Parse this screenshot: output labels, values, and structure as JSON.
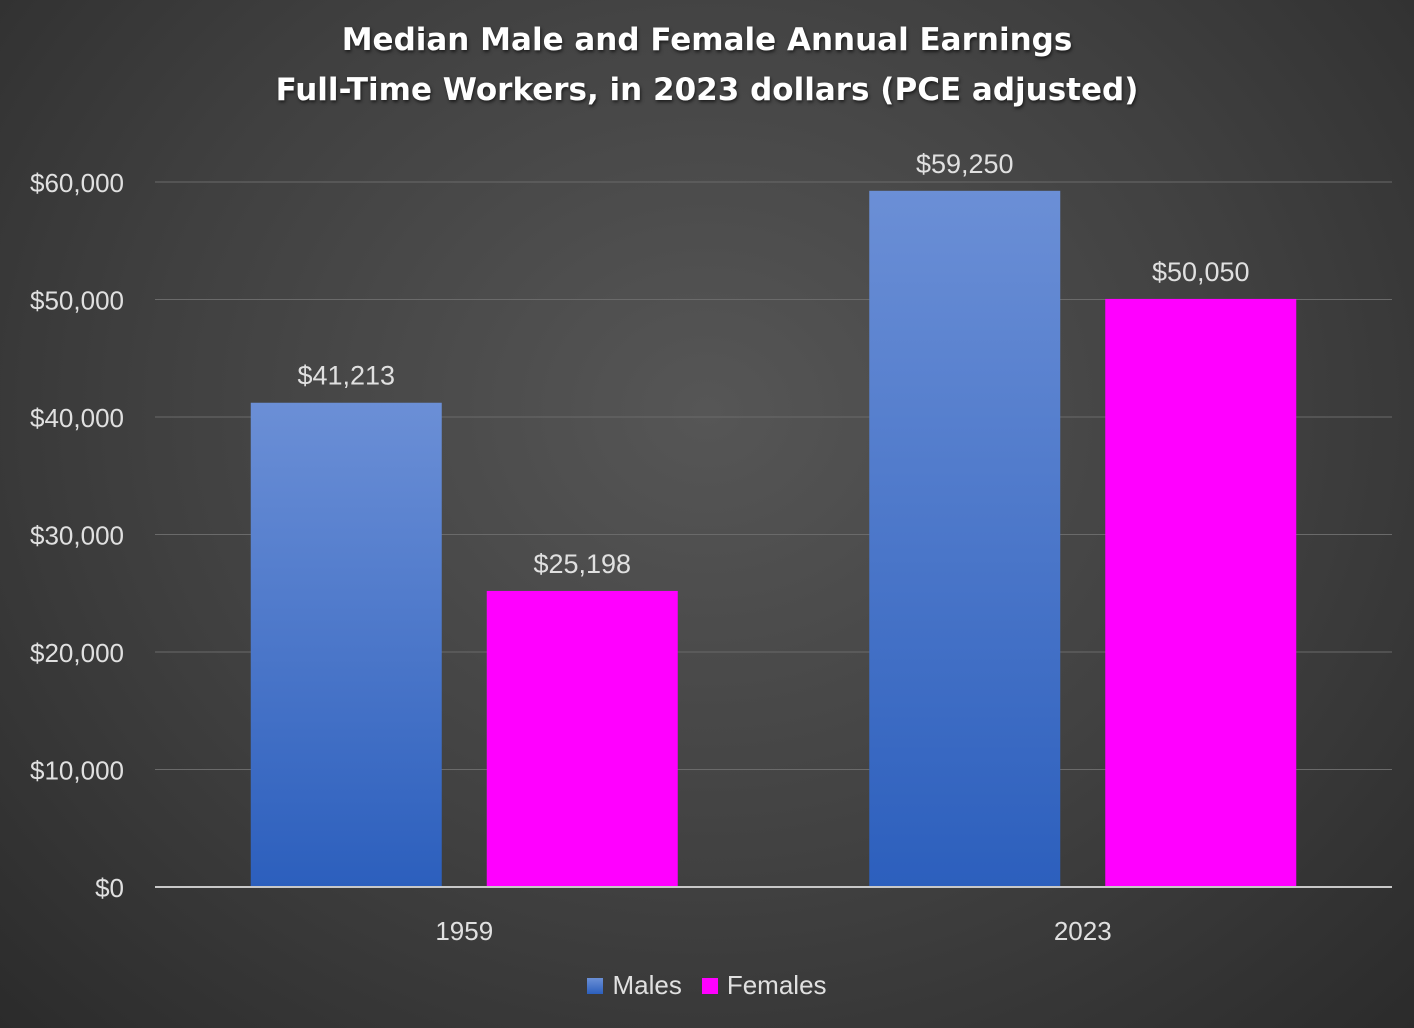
{
  "chart_data": {
    "type": "bar",
    "title": "Median Male and Female Annual Earnings",
    "subtitle": "Full-Time Workers, in 2023 dollars (PCE adjusted)",
    "categories": [
      "1959",
      "2023"
    ],
    "series": [
      {
        "name": "Males",
        "values": [
          41213,
          59250
        ],
        "labels": [
          "$41,213",
          "$59,250"
        ],
        "color": "#3f6cc9"
      },
      {
        "name": "Females",
        "values": [
          25198,
          50050
        ],
        "labels": [
          "$25,198",
          "$50,050"
        ],
        "color": "#ff00ff"
      }
    ],
    "ylim": [
      0,
      60000
    ],
    "yticks": [
      0,
      10000,
      20000,
      30000,
      40000,
      50000,
      60000
    ],
    "ytick_labels": [
      "$0",
      "$10,000",
      "$20,000",
      "$30,000",
      "$40,000",
      "$50,000",
      "$60,000"
    ],
    "xlabel": "",
    "ylabel": "",
    "grid": true,
    "legend_position": "bottom"
  }
}
